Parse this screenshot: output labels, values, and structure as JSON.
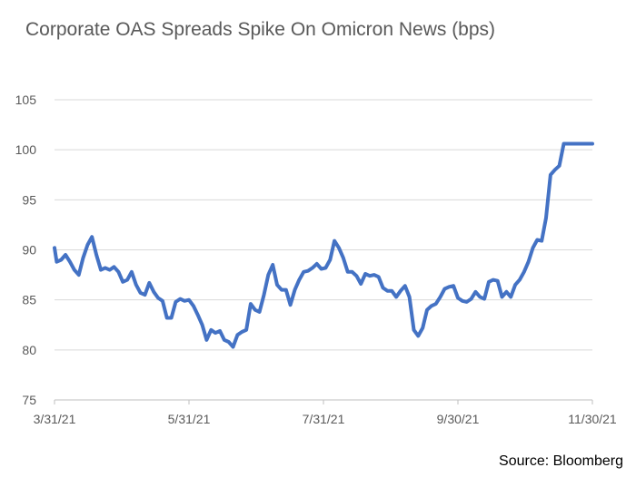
{
  "chart_data": {
    "type": "line",
    "title": "Corporate OAS Spreads Spike On Omicron News (bps)",
    "source": "Source: Bloomberg",
    "xlabel": "",
    "ylabel": "",
    "ylim": [
      75,
      105
    ],
    "yticks": [
      75,
      80,
      85,
      90,
      95,
      100,
      105
    ],
    "xticks": [
      "3/31/21",
      "5/31/21",
      "7/31/21",
      "9/30/21",
      "11/30/21"
    ],
    "x_range": [
      "2021-03-31",
      "2021-11-30"
    ],
    "grid": "horizontal",
    "legend": "none",
    "series": [
      {
        "color": "#4472C4",
        "x": [
          "2021-03-31",
          "2021-04-01",
          "2021-04-03",
          "2021-04-05",
          "2021-04-07",
          "2021-04-09",
          "2021-04-11",
          "2021-04-13",
          "2021-04-15",
          "2021-04-17",
          "2021-04-19",
          "2021-04-21",
          "2021-04-23",
          "2021-04-25",
          "2021-04-27",
          "2021-04-29",
          "2021-05-01",
          "2021-05-03",
          "2021-05-05",
          "2021-05-07",
          "2021-05-09",
          "2021-05-11",
          "2021-05-13",
          "2021-05-15",
          "2021-05-17",
          "2021-05-19",
          "2021-05-21",
          "2021-05-23",
          "2021-05-25",
          "2021-05-27",
          "2021-05-29",
          "2021-05-31",
          "2021-06-02",
          "2021-06-04",
          "2021-06-06",
          "2021-06-08",
          "2021-06-10",
          "2021-06-12",
          "2021-06-14",
          "2021-06-16",
          "2021-06-18",
          "2021-06-20",
          "2021-06-22",
          "2021-06-24",
          "2021-06-26",
          "2021-06-28",
          "2021-06-30",
          "2021-07-02",
          "2021-07-04",
          "2021-07-06",
          "2021-07-08",
          "2021-07-10",
          "2021-07-12",
          "2021-07-14",
          "2021-07-16",
          "2021-07-18",
          "2021-07-20",
          "2021-07-22",
          "2021-07-24",
          "2021-07-26",
          "2021-07-28",
          "2021-07-30",
          "2021-08-01",
          "2021-08-03",
          "2021-08-05",
          "2021-08-07",
          "2021-08-09",
          "2021-08-11",
          "2021-08-13",
          "2021-08-15",
          "2021-08-17",
          "2021-08-19",
          "2021-08-21",
          "2021-08-23",
          "2021-08-25",
          "2021-08-27",
          "2021-08-29",
          "2021-08-31",
          "2021-09-02",
          "2021-09-04",
          "2021-09-06",
          "2021-09-08",
          "2021-09-10",
          "2021-09-12",
          "2021-09-14",
          "2021-09-16",
          "2021-09-18",
          "2021-09-20",
          "2021-09-22",
          "2021-09-24",
          "2021-09-26",
          "2021-09-28",
          "2021-09-30",
          "2021-10-02",
          "2021-10-04",
          "2021-10-06",
          "2021-10-08",
          "2021-10-10",
          "2021-10-12",
          "2021-10-14",
          "2021-10-16",
          "2021-10-18",
          "2021-10-20",
          "2021-10-22",
          "2021-10-24",
          "2021-10-26",
          "2021-10-28",
          "2021-10-30",
          "2021-11-01",
          "2021-11-03",
          "2021-11-05",
          "2021-11-07",
          "2021-11-09",
          "2021-11-11",
          "2021-11-13",
          "2021-11-15",
          "2021-11-17",
          "2021-11-19",
          "2021-11-21",
          "2021-11-23",
          "2021-11-25",
          "2021-11-27",
          "2021-11-29",
          "2021-11-30"
        ],
        "values": [
          90.2,
          88.8,
          89.0,
          89.5,
          88.8,
          88.0,
          87.5,
          89.2,
          90.5,
          91.3,
          89.5,
          88.0,
          88.2,
          88.0,
          88.3,
          87.8,
          86.8,
          87.0,
          87.8,
          86.5,
          85.7,
          85.5,
          86.7,
          85.8,
          85.2,
          84.9,
          83.2,
          83.2,
          84.8,
          85.1,
          84.9,
          85.0,
          84.4,
          83.5,
          82.5,
          81.0,
          82.0,
          81.7,
          81.9,
          81.0,
          80.8,
          80.3,
          81.5,
          81.8,
          82.0,
          84.6,
          84.0,
          83.8,
          85.5,
          87.5,
          88.5,
          86.5,
          86.0,
          86.0,
          84.5,
          86.0,
          87.0,
          87.8,
          87.9,
          88.2,
          88.6,
          88.1,
          88.2,
          89.0,
          90.9,
          90.2,
          89.2,
          87.8,
          87.8,
          87.4,
          86.6,
          87.6,
          87.4,
          87.5,
          87.3,
          86.2,
          85.9,
          85.9,
          85.3,
          85.9,
          86.4,
          85.3,
          82.0,
          81.4,
          82.2,
          84.0,
          84.4,
          84.6,
          85.3,
          86.1,
          86.3,
          86.4,
          85.2,
          84.9,
          84.8,
          85.1,
          85.8,
          85.3,
          85.1,
          86.8,
          87.0,
          86.9,
          85.3,
          85.8,
          85.3,
          86.5,
          87.0,
          87.8,
          88.8,
          90.2,
          91.0,
          90.9,
          93.2,
          97.5,
          98.0,
          98.4,
          100.6,
          100.6,
          100.6,
          100.6,
          100.6,
          100.6,
          100.6,
          100.6
        ]
      }
    ]
  }
}
